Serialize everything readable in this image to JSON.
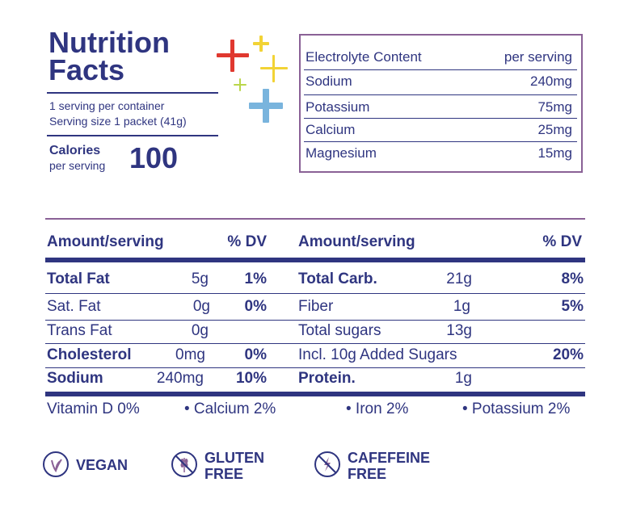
{
  "title": {
    "line1": "Nutrition",
    "line2": "Facts"
  },
  "serving": {
    "per_container": "1 serving per container",
    "size": "Serving size 1 packet (41g)"
  },
  "calories": {
    "label": "Calories",
    "sub": "per serving",
    "value": "100"
  },
  "electrolytes": {
    "header_left": "Electrolyte Content",
    "header_right": "per serving",
    "rows": [
      {
        "name": "Sodium",
        "value": "240mg"
      },
      {
        "name": "Potassium",
        "value": "75mg"
      },
      {
        "name": "Calcium",
        "value": "25mg"
      },
      {
        "name": "Magnesium",
        "value": "15mg"
      }
    ]
  },
  "table": {
    "header": {
      "amount_left": "Amount/serving",
      "dv_left": "% DV",
      "amount_right": "Amount/serving",
      "dv_right": "% DV"
    },
    "left": [
      {
        "name": "Total Fat",
        "amount": "5g",
        "dv": "1%"
      },
      {
        "name": "Sat. Fat",
        "amount": "0g",
        "dv": "0%"
      },
      {
        "name": "Trans Fat",
        "amount": "0g",
        "dv": ""
      },
      {
        "name": "Cholesterol",
        "amount": "0mg",
        "dv": "0%"
      },
      {
        "name": "Sodium",
        "amount": "240mg",
        "dv": "10%"
      }
    ],
    "right": [
      {
        "name": "Total Carb.",
        "amount": "21g",
        "dv": "8%"
      },
      {
        "name": "Fiber",
        "amount": "1g",
        "dv": "5%"
      },
      {
        "name": "Total sugars",
        "amount": "13g",
        "dv": ""
      },
      {
        "name": "Incl. 10g Added Sugars",
        "amount": "",
        "dv": "20%"
      },
      {
        "name": "Protein.",
        "amount": "1g",
        "dv": ""
      }
    ]
  },
  "vitamins": {
    "vitamin_d": "Vitamin D 0%",
    "calcium": "• Calcium 2%",
    "iron": "• Iron 2%",
    "potassium": "• Potassium 2%"
  },
  "badges": {
    "vegan": {
      "text": "VEGAN",
      "icon": "leaf-icon"
    },
    "gluten": {
      "line1": "GLUTEN",
      "line2": "FREE",
      "icon": "no-wheat-icon"
    },
    "caffeine": {
      "line1": "CAFEFEINE",
      "line2": "FREE",
      "icon": "no-caffeine-icon"
    }
  },
  "colors": {
    "navy": "#2f3580",
    "purple": "#8a6196",
    "red": "#e0382f",
    "yellow": "#f2d335",
    "green": "#b9d64a",
    "blue": "#79b4dd"
  }
}
